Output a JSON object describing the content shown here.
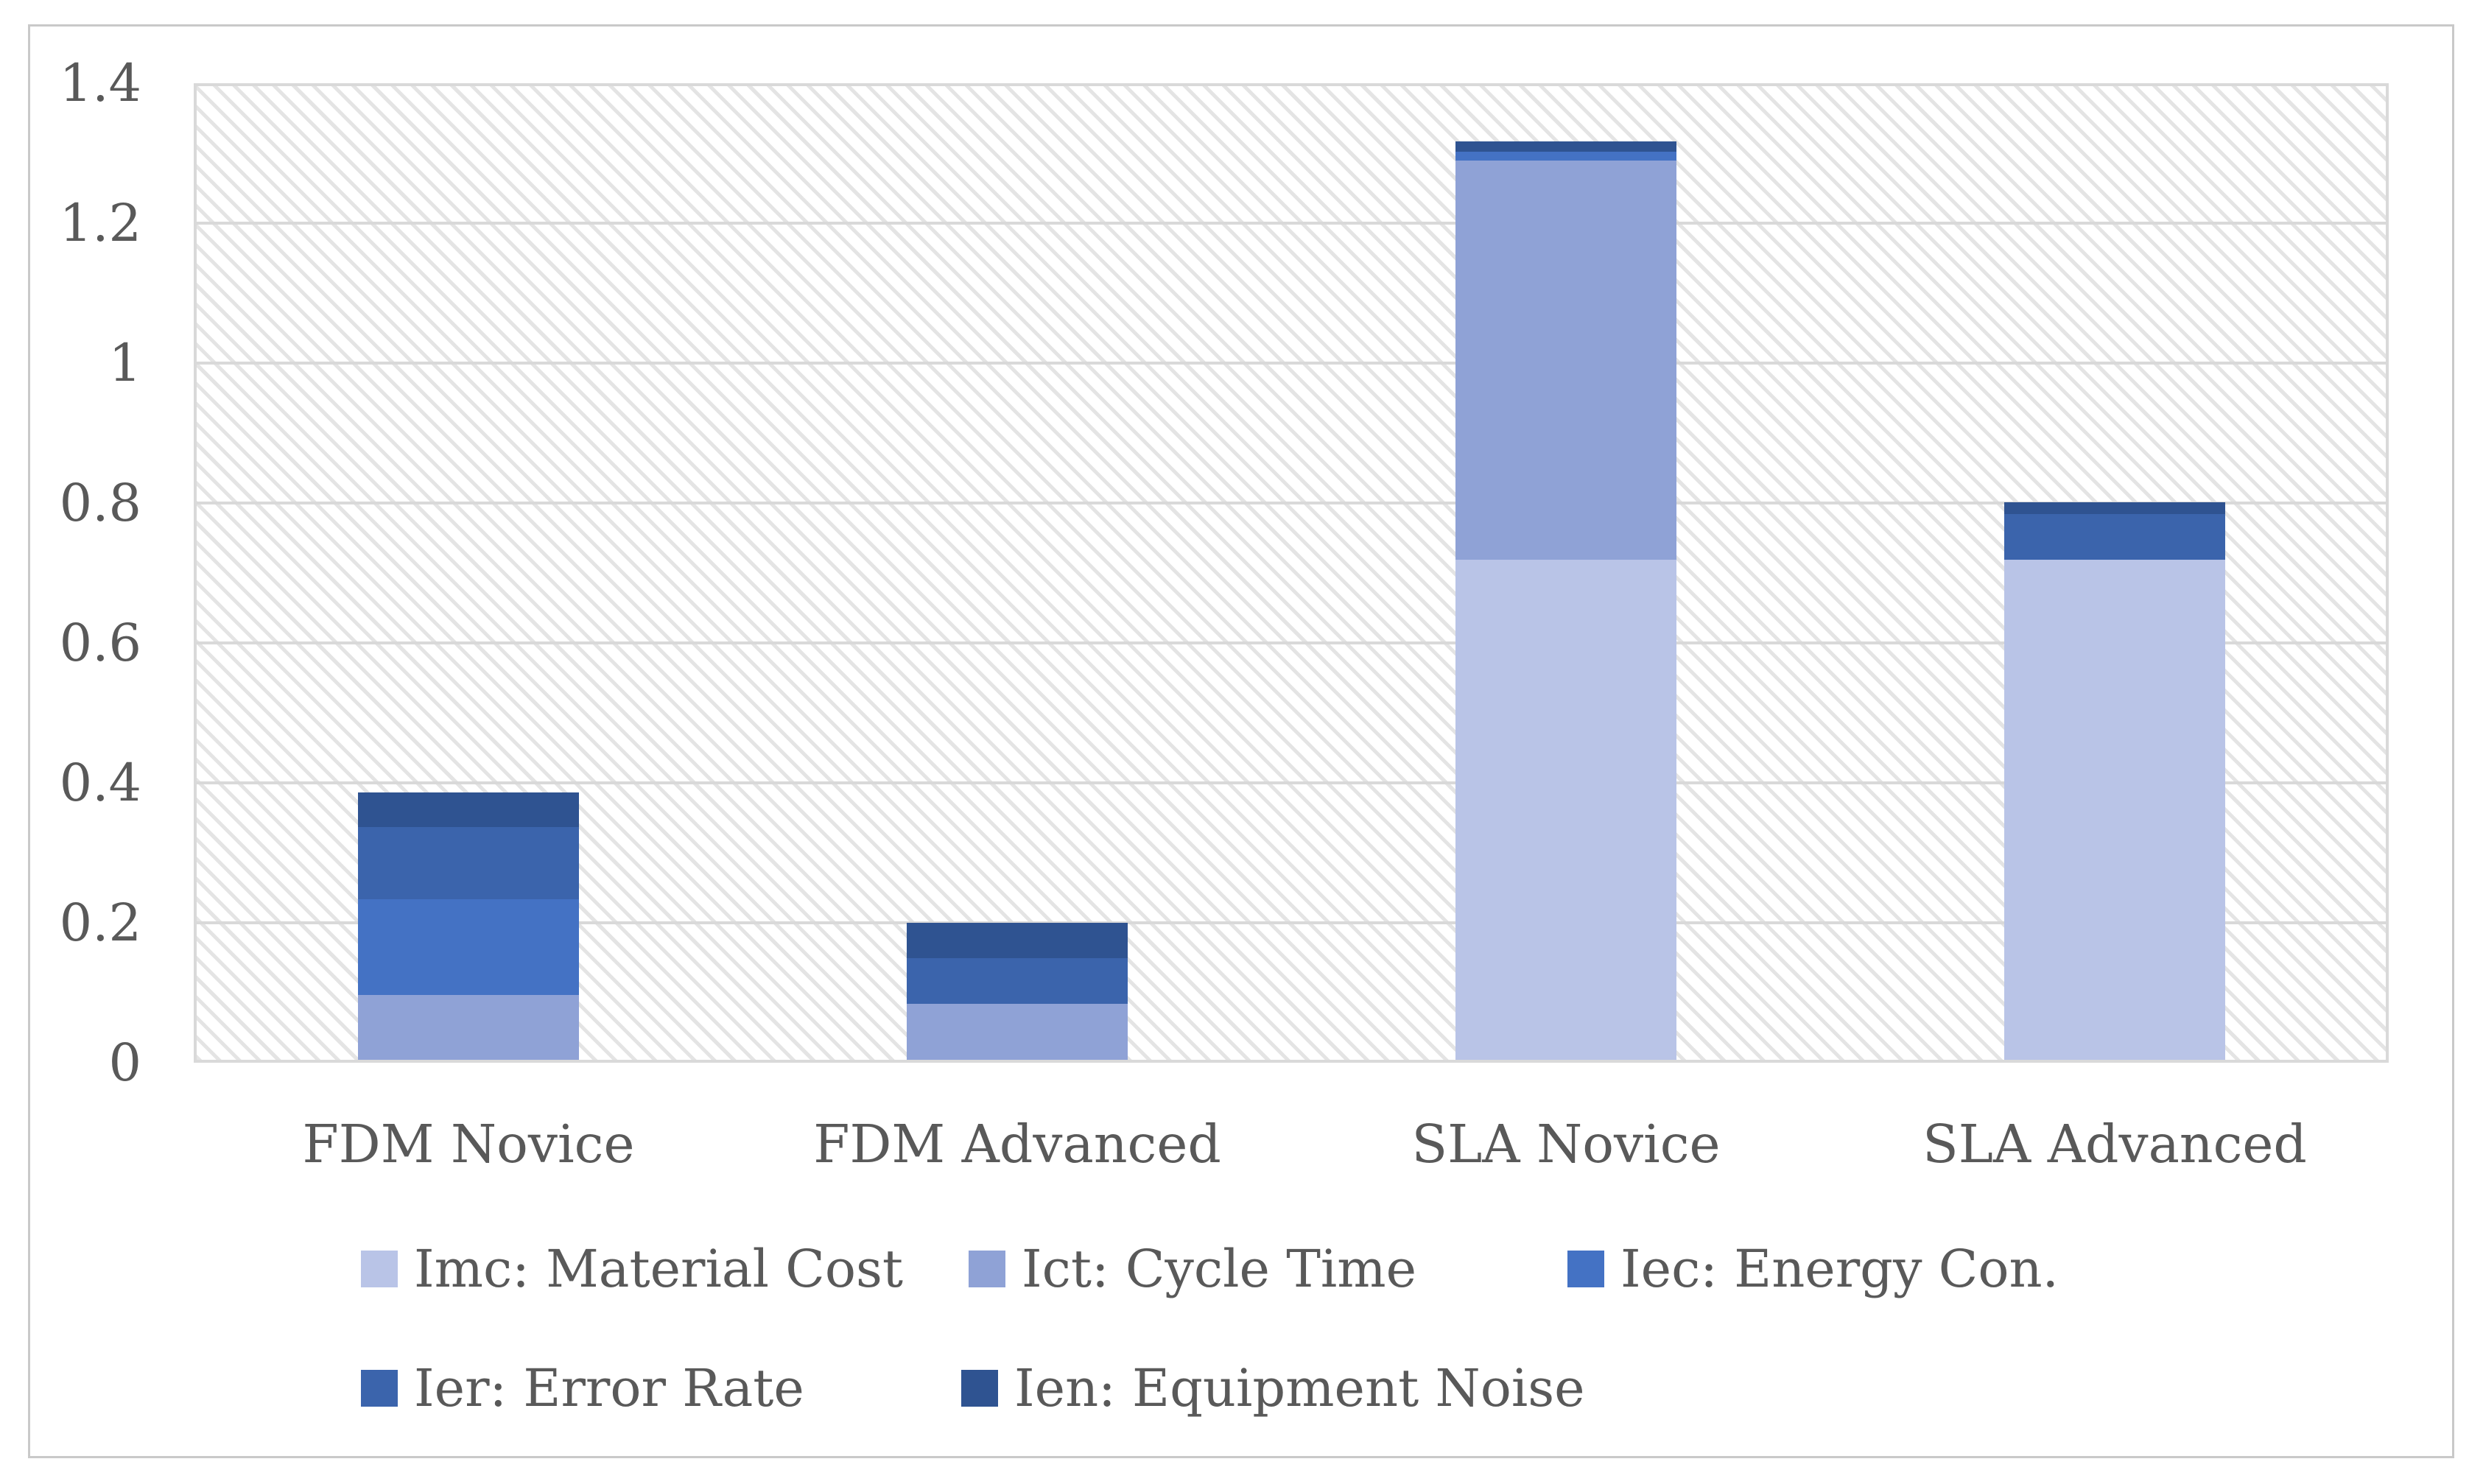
{
  "figure": {
    "background": "#ffffff",
    "frame_color": "#c9c9c9",
    "text_color": "#595959",
    "gridline_color": "#d9d9d9",
    "hatch_color": "#e4e4e4"
  },
  "chart_data": {
    "type": "bar",
    "stacked": true,
    "title": "",
    "xlabel": "",
    "ylabel": "",
    "categories": [
      "FDM Novice",
      "FDM Advanced",
      "SLA Novice",
      "SLA Advanced"
    ],
    "series": [
      {
        "name": "Imc: Material Cost",
        "color": "#b9c4e7",
        "values": [
          0,
          0,
          0.715,
          0.715
        ]
      },
      {
        "name": "Ict: Cycle Time",
        "color": "#8fa2d6",
        "values": [
          0.093,
          0.08,
          0.57,
          0
        ]
      },
      {
        "name": "Iec: Energy Con.",
        "color": "#4472c4",
        "values": [
          0.137,
          0,
          0.013,
          0
        ]
      },
      {
        "name": "Ier: Error Rate",
        "color": "#3b64ac",
        "values": [
          0.103,
          0.065,
          0,
          0.065
        ]
      },
      {
        "name": "Ien: Equipment Noise",
        "color": "#2f5391",
        "values": [
          0.049,
          0.05,
          0.015,
          0.017
        ]
      }
    ],
    "totals": [
      0.38,
      0.19,
      1.31,
      0.8
    ],
    "y_axis": {
      "min": 0,
      "max": 1.4,
      "step": 0.2,
      "ticks": [
        0,
        0.2,
        0.4,
        0.6,
        0.8,
        1,
        1.2,
        1.4
      ],
      "tick_labels": [
        "0",
        "0.2",
        "0.4",
        "0.6",
        "0.8",
        "1",
        "1.2",
        "1.4"
      ]
    },
    "grid": true,
    "legend_position": "bottom",
    "plot_fill_pattern": "light-downward-diagonal-hatch"
  }
}
